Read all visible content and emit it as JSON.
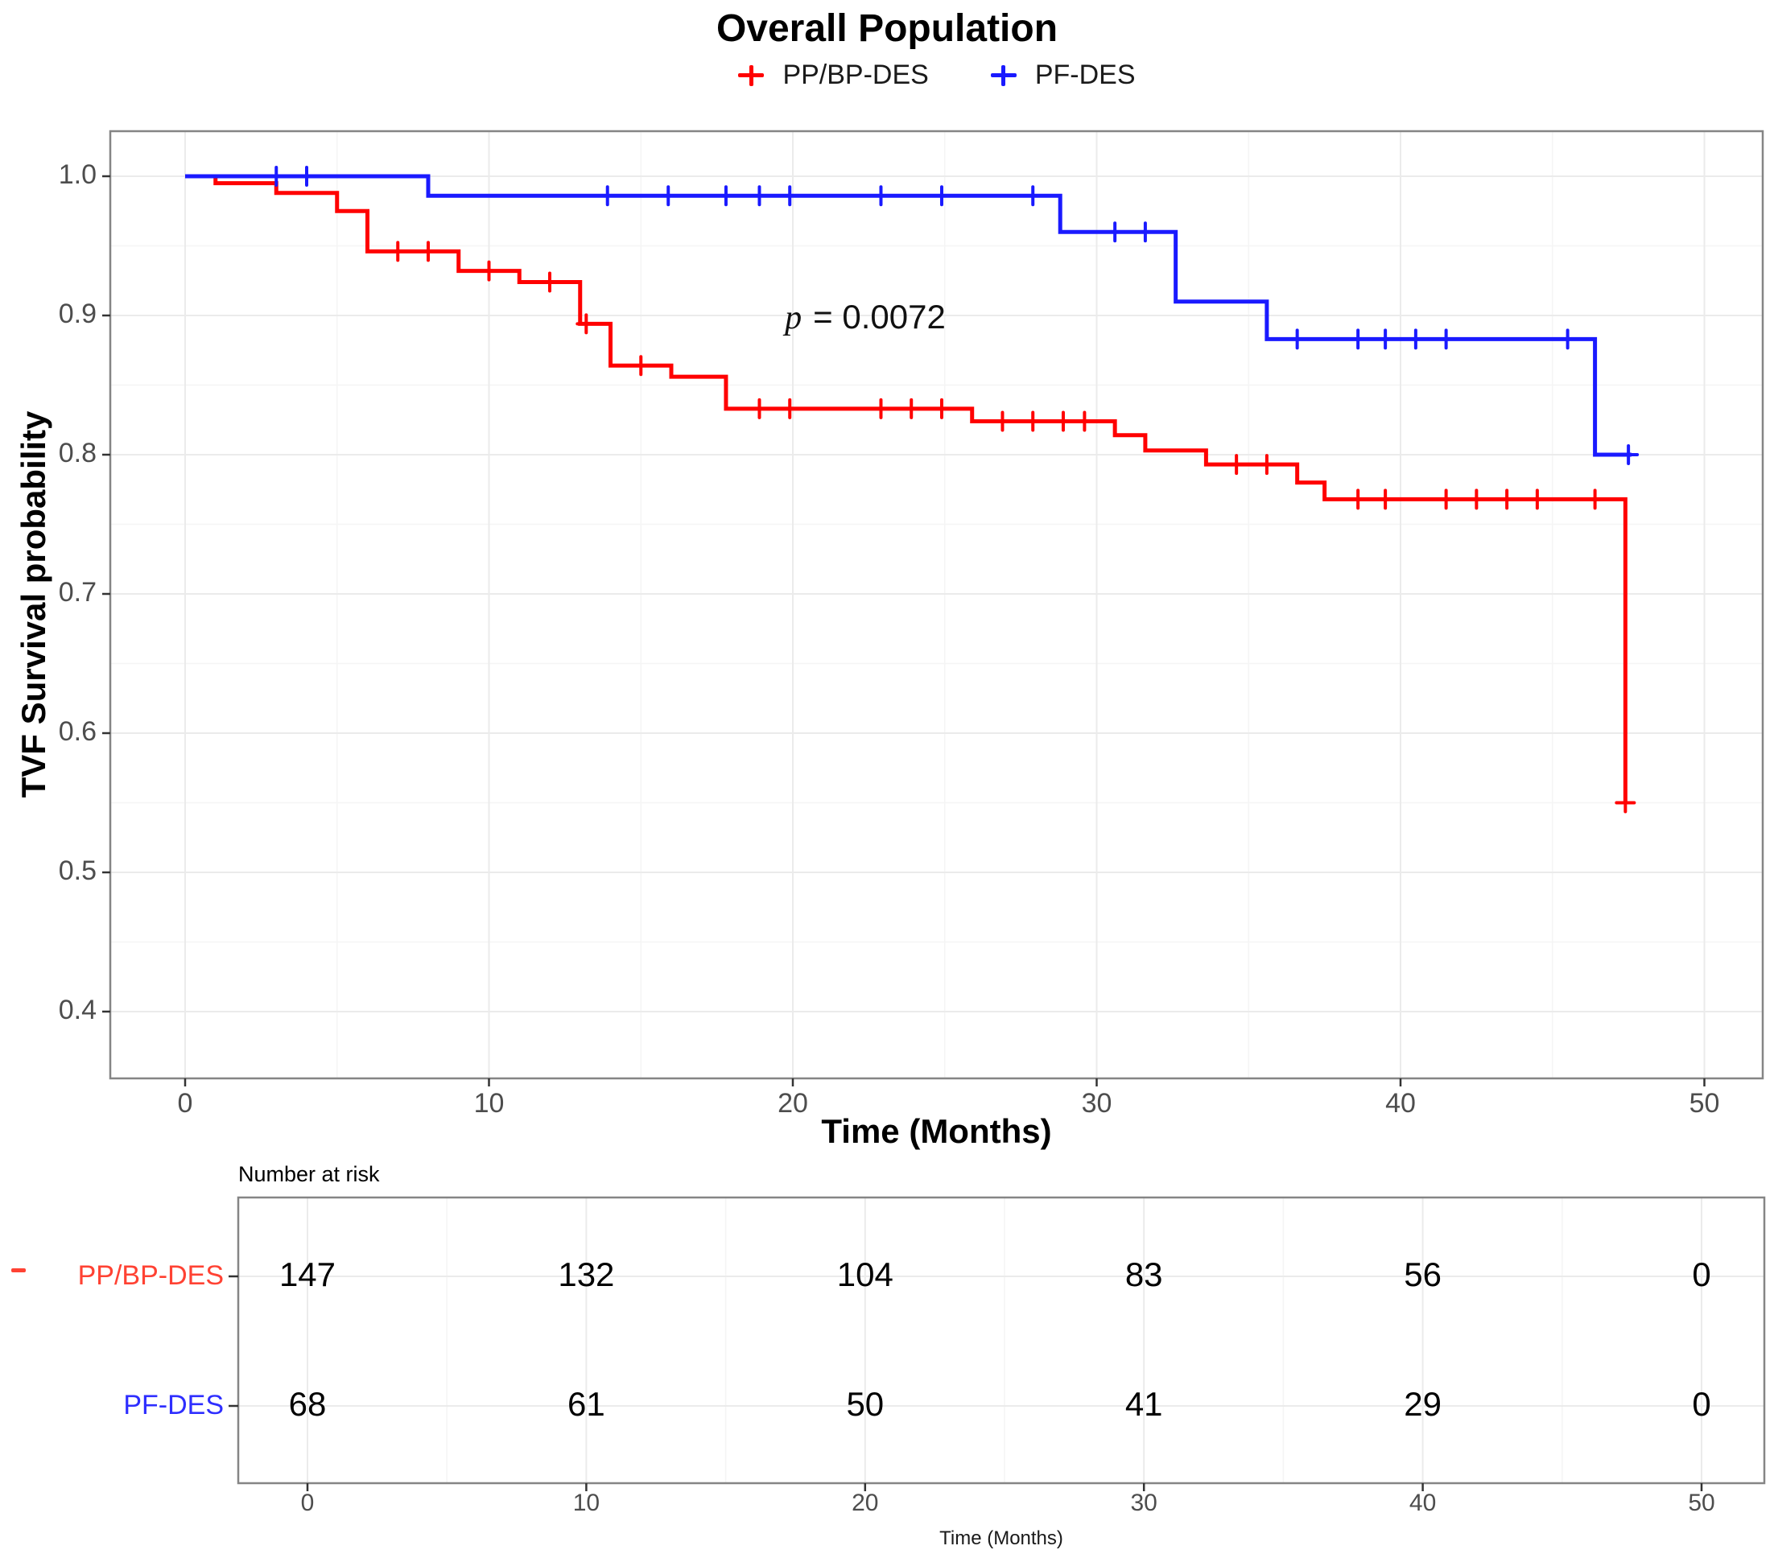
{
  "title": "Overall Population",
  "legend": {
    "items": [
      {
        "label": "PP/BP-DES",
        "color": "#FF0000"
      },
      {
        "label": "PF-DES",
        "color": "#1A1AFF"
      }
    ]
  },
  "annotation": {
    "symbol": "p",
    "text": "= 0.0072"
  },
  "axes": {
    "y_title": "TVF Survival probability",
    "x_title": "Time (Months)",
    "y_ticks": [
      "1.0",
      "0.9",
      "0.8",
      "0.7",
      "0.6",
      "0.5",
      "0.4"
    ],
    "y_tick_values": [
      1.0,
      0.9,
      0.8,
      0.7,
      0.6,
      0.5,
      0.4
    ],
    "x_ticks": [
      "0",
      "10",
      "20",
      "30",
      "40",
      "50"
    ],
    "x_tick_values": [
      0,
      10,
      20,
      30,
      40,
      50
    ]
  },
  "chart_data": {
    "type": "line",
    "subtype": "kaplan-meier-step",
    "title": "Overall Population",
    "xlabel": "Time (Months)",
    "ylabel": "TVF Survival probability",
    "xlim": [
      0,
      50
    ],
    "ylim": [
      0.35,
      1.03
    ],
    "grid": true,
    "legend_position": "top",
    "p_value": "0.0072",
    "series": [
      {
        "name": "PP/BP-DES",
        "color": "#FF0000",
        "steps": [
          [
            0,
            1.0
          ],
          [
            1,
            0.995
          ],
          [
            3,
            0.988
          ],
          [
            5,
            0.975
          ],
          [
            6,
            0.946
          ],
          [
            9,
            0.932
          ],
          [
            11,
            0.924
          ],
          [
            13,
            0.894
          ],
          [
            14,
            0.864
          ],
          [
            16,
            0.856
          ],
          [
            17.8,
            0.833
          ],
          [
            25.9,
            0.824
          ],
          [
            30.6,
            0.814
          ],
          [
            31.6,
            0.803
          ],
          [
            33.6,
            0.793
          ],
          [
            36.6,
            0.78
          ],
          [
            37.5,
            0.768
          ],
          [
            47.4,
            0.55
          ]
        ],
        "end_time": 47.4,
        "censor_marks": [
          [
            7,
            0.946
          ],
          [
            8,
            0.946
          ],
          [
            10,
            0.932
          ],
          [
            12,
            0.924
          ],
          [
            13.2,
            0.894
          ],
          [
            15,
            0.864
          ],
          [
            18.9,
            0.833
          ],
          [
            19.9,
            0.833
          ],
          [
            22.9,
            0.833
          ],
          [
            23.9,
            0.833
          ],
          [
            24.9,
            0.833
          ],
          [
            26.9,
            0.824
          ],
          [
            27.9,
            0.824
          ],
          [
            28.9,
            0.824
          ],
          [
            29.6,
            0.824
          ],
          [
            34.6,
            0.793
          ],
          [
            35.6,
            0.793
          ],
          [
            38.6,
            0.768
          ],
          [
            39.5,
            0.768
          ],
          [
            41.5,
            0.768
          ],
          [
            42.5,
            0.768
          ],
          [
            43.5,
            0.768
          ],
          [
            44.5,
            0.768
          ],
          [
            46.4,
            0.768
          ],
          [
            47.4,
            0.55
          ]
        ]
      },
      {
        "name": "PF-DES",
        "color": "#1A1AFF",
        "steps": [
          [
            0,
            1.0
          ],
          [
            8,
            0.986
          ],
          [
            28.8,
            0.96
          ],
          [
            32.6,
            0.91
          ],
          [
            35.6,
            0.883
          ],
          [
            46.4,
            0.8
          ]
        ],
        "end_time": 47.6,
        "censor_marks": [
          [
            3,
            1.0
          ],
          [
            4,
            1.0
          ],
          [
            13.9,
            0.986
          ],
          [
            15.9,
            0.986
          ],
          [
            17.8,
            0.986
          ],
          [
            18.9,
            0.986
          ],
          [
            19.9,
            0.986
          ],
          [
            22.9,
            0.986
          ],
          [
            24.9,
            0.986
          ],
          [
            27.9,
            0.986
          ],
          [
            30.6,
            0.96
          ],
          [
            31.6,
            0.96
          ],
          [
            36.6,
            0.883
          ],
          [
            38.6,
            0.883
          ],
          [
            39.5,
            0.883
          ],
          [
            40.5,
            0.883
          ],
          [
            41.5,
            0.883
          ],
          [
            45.5,
            0.883
          ],
          [
            47.5,
            0.8
          ]
        ]
      }
    ]
  },
  "risk_table": {
    "title": "Number at risk",
    "x_title": "Time (Months)",
    "x_ticks": [
      "0",
      "10",
      "20",
      "30",
      "40",
      "50"
    ],
    "x_tick_values": [
      0,
      10,
      20,
      30,
      40,
      50
    ],
    "rows": [
      {
        "label": "PP/BP-DES",
        "color": "#FF4233",
        "values": [
          "147",
          "132",
          "104",
          "83",
          "56",
          "0"
        ]
      },
      {
        "label": "PF-DES",
        "color": "#2E2EFF",
        "values": [
          "68",
          "61",
          "50",
          "41",
          "29",
          "0"
        ]
      }
    ]
  },
  "colors": {
    "grid_major": "#EBEBEB",
    "grid_minor": "#F5F5F5",
    "panel_border": "#858585",
    "tick_text": "#4D4D4D"
  }
}
